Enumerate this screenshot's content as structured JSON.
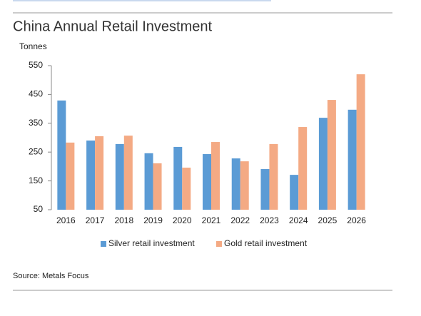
{
  "chart_data": {
    "type": "bar",
    "title": "China Annual Retail Investment",
    "y_label": "Tonnes",
    "source": "Source: Metals Focus",
    "categories": [
      "2016",
      "2017",
      "2018",
      "2019",
      "2020",
      "2021",
      "2022",
      "2023",
      "2024",
      "2025",
      "2026"
    ],
    "series": [
      {
        "name": "Silver retail investment",
        "color": "#5b9bd5",
        "values": [
          429,
          290,
          278,
          246,
          268,
          243,
          228,
          191,
          171,
          369,
          397
        ]
      },
      {
        "name": "Gold retail investment",
        "color": "#f4aa84",
        "values": [
          283,
          305,
          307,
          211,
          196,
          285,
          218,
          278,
          337,
          431,
          520
        ]
      }
    ],
    "ylim": [
      50,
      550
    ],
    "yticks": [
      50,
      150,
      250,
      350,
      450,
      550
    ],
    "grid": false,
    "legend": "bottom"
  }
}
